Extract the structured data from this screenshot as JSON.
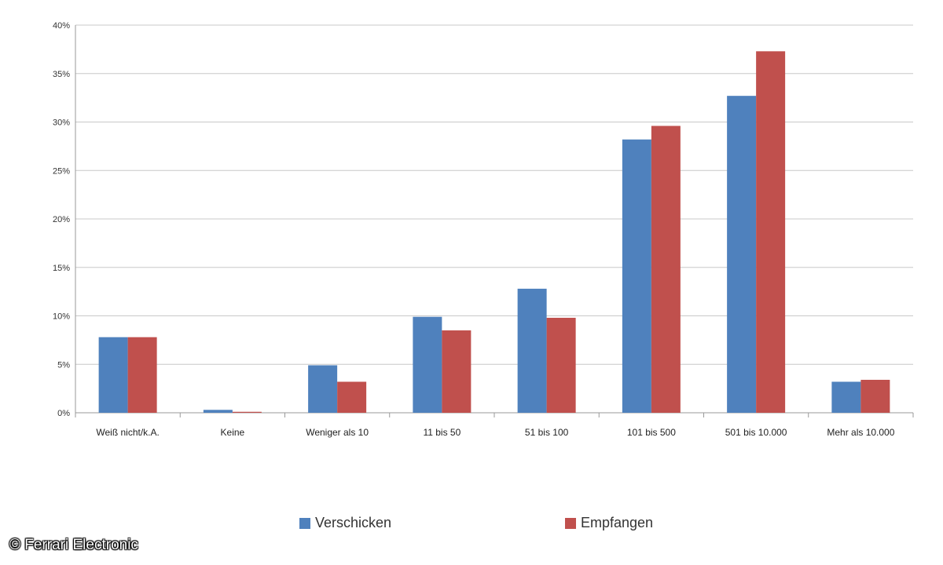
{
  "chart_data": {
    "type": "bar",
    "categories": [
      "Weiß nicht/k.A.",
      "Keine",
      "Weniger als 10",
      "11 bis 50",
      "51 bis 100",
      "101 bis 500",
      "501 bis 10.000",
      "Mehr als 10.000"
    ],
    "series": [
      {
        "name": "Verschicken",
        "color": "#4f81bd",
        "values": [
          7.8,
          0.3,
          4.9,
          9.9,
          12.8,
          28.2,
          32.7,
          3.2
        ]
      },
      {
        "name": "Empfangen",
        "color": "#c0504d",
        "values": [
          7.8,
          0.1,
          3.2,
          8.5,
          9.8,
          29.6,
          37.3,
          3.4
        ]
      }
    ],
    "y_ticks": [
      "0%",
      "5%",
      "10%",
      "15%",
      "20%",
      "25%",
      "30%",
      "35%",
      "40%"
    ],
    "ylim": [
      0,
      40
    ],
    "grid": true,
    "legend_position": "bottom"
  },
  "watermark": "© Ferrari Electronic"
}
